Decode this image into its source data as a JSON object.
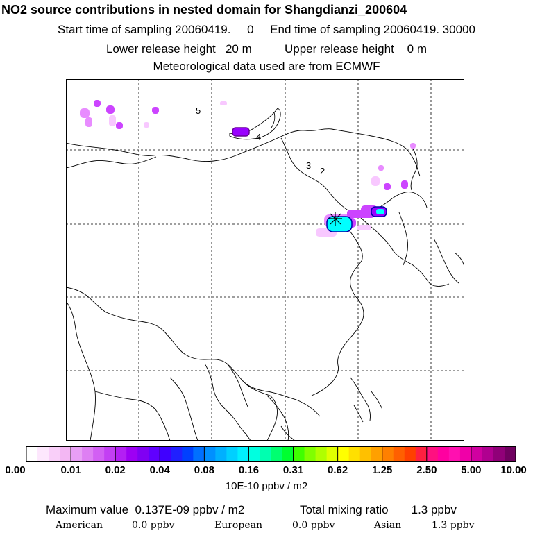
{
  "header": {
    "title": "NO2 source contributions in nested domain for Shangdianzi_200604",
    "sampling_line": "Start time of sampling 20060419.     0     End time of sampling 20060419. 30000",
    "release_line": "Lower release height   20 m          Upper release height    0 m",
    "met_line": "Meteorological data used are from ECMWF"
  },
  "map": {
    "contour_labels": [
      "5",
      "4",
      "3",
      "2"
    ],
    "station_marker": "x-star-icon",
    "plume_colors": {
      "faint": "#f8c8ff",
      "light": "#e88cff",
      "medium": "#cc44ff",
      "strong": "#9900ff",
      "core": "#00ffff",
      "outline": "#0000aa"
    }
  },
  "colorbar": {
    "colors": [
      "#ffffff",
      "#fde7fd",
      "#f9cff9",
      "#f3b7f3",
      "#e89ff5",
      "#de7ff3",
      "#d25ff3",
      "#c33ff3",
      "#b31ff3",
      "#9d00f3",
      "#8000f3",
      "#6000ff",
      "#4000ff",
      "#2020ff",
      "#0040ff",
      "#0070ff",
      "#0090ff",
      "#00b0ff",
      "#00d0ff",
      "#00f0ff",
      "#00ffe0",
      "#00ffb0",
      "#00ff70",
      "#00ff30",
      "#40ff00",
      "#80ff00",
      "#b0ff00",
      "#e0ff00",
      "#ffff00",
      "#ffe000",
      "#ffc000",
      "#ffa000",
      "#ff8000",
      "#ff6000",
      "#ff4000",
      "#ff2040",
      "#ff1080",
      "#ff00a0",
      "#ff10b0",
      "#f000a8",
      "#d000a0",
      "#b00090",
      "#900078",
      "#700060"
    ],
    "tick_labels": [
      "0.00",
      "0.01",
      "0.02",
      "0.04",
      "0.08",
      "0.16",
      "0.31",
      "0.62",
      "1.25",
      "2.50",
      "5.00",
      "10.00"
    ],
    "units": "10E-10 ppbv / m2"
  },
  "summary": {
    "max_line": "Maximum value  0.137E-09 ppbv / m2",
    "total_line": "Total mixing ratio       1.3 ppbv",
    "american_label": "American",
    "american_value": "0.0 ppbv",
    "european_label": "European",
    "european_value": "0.0 ppbv",
    "asian_label": "Asian",
    "asian_value": "1.3 ppbv"
  }
}
